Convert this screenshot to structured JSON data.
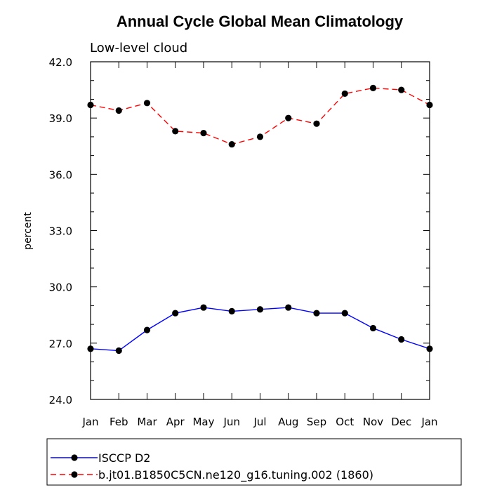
{
  "chart_data": {
    "type": "line",
    "title": "Annual Cycle Global Mean Climatology",
    "subtitle": "Low-level cloud",
    "ylabel": "percent",
    "xlabel": "",
    "categories": [
      "Jan",
      "Feb",
      "Mar",
      "Apr",
      "May",
      "Jun",
      "Jul",
      "Aug",
      "Sep",
      "Oct",
      "Nov",
      "Dec",
      "Jan"
    ],
    "ylim": [
      24.0,
      42.0
    ],
    "yticks": [
      "24.0",
      "27.0",
      "30.0",
      "33.0",
      "36.0",
      "39.0",
      "42.0"
    ],
    "series": [
      {
        "name": "ISCCP D2",
        "color": "#0000ff",
        "dash": "solid",
        "values": [
          26.7,
          26.6,
          27.7,
          28.6,
          28.9,
          28.7,
          28.8,
          28.9,
          28.6,
          28.6,
          27.8,
          27.2,
          26.7
        ]
      },
      {
        "name": "b.jt01.B1850C5CN.ne120_g16.tuning.002 (1860)",
        "color": "#ff0000",
        "dash": "dashed",
        "values": [
          39.7,
          39.4,
          39.8,
          38.3,
          38.2,
          37.6,
          38.0,
          39.0,
          38.7,
          40.3,
          40.6,
          40.5,
          39.7
        ]
      }
    ],
    "grid": false,
    "legend_position": "bottom"
  }
}
